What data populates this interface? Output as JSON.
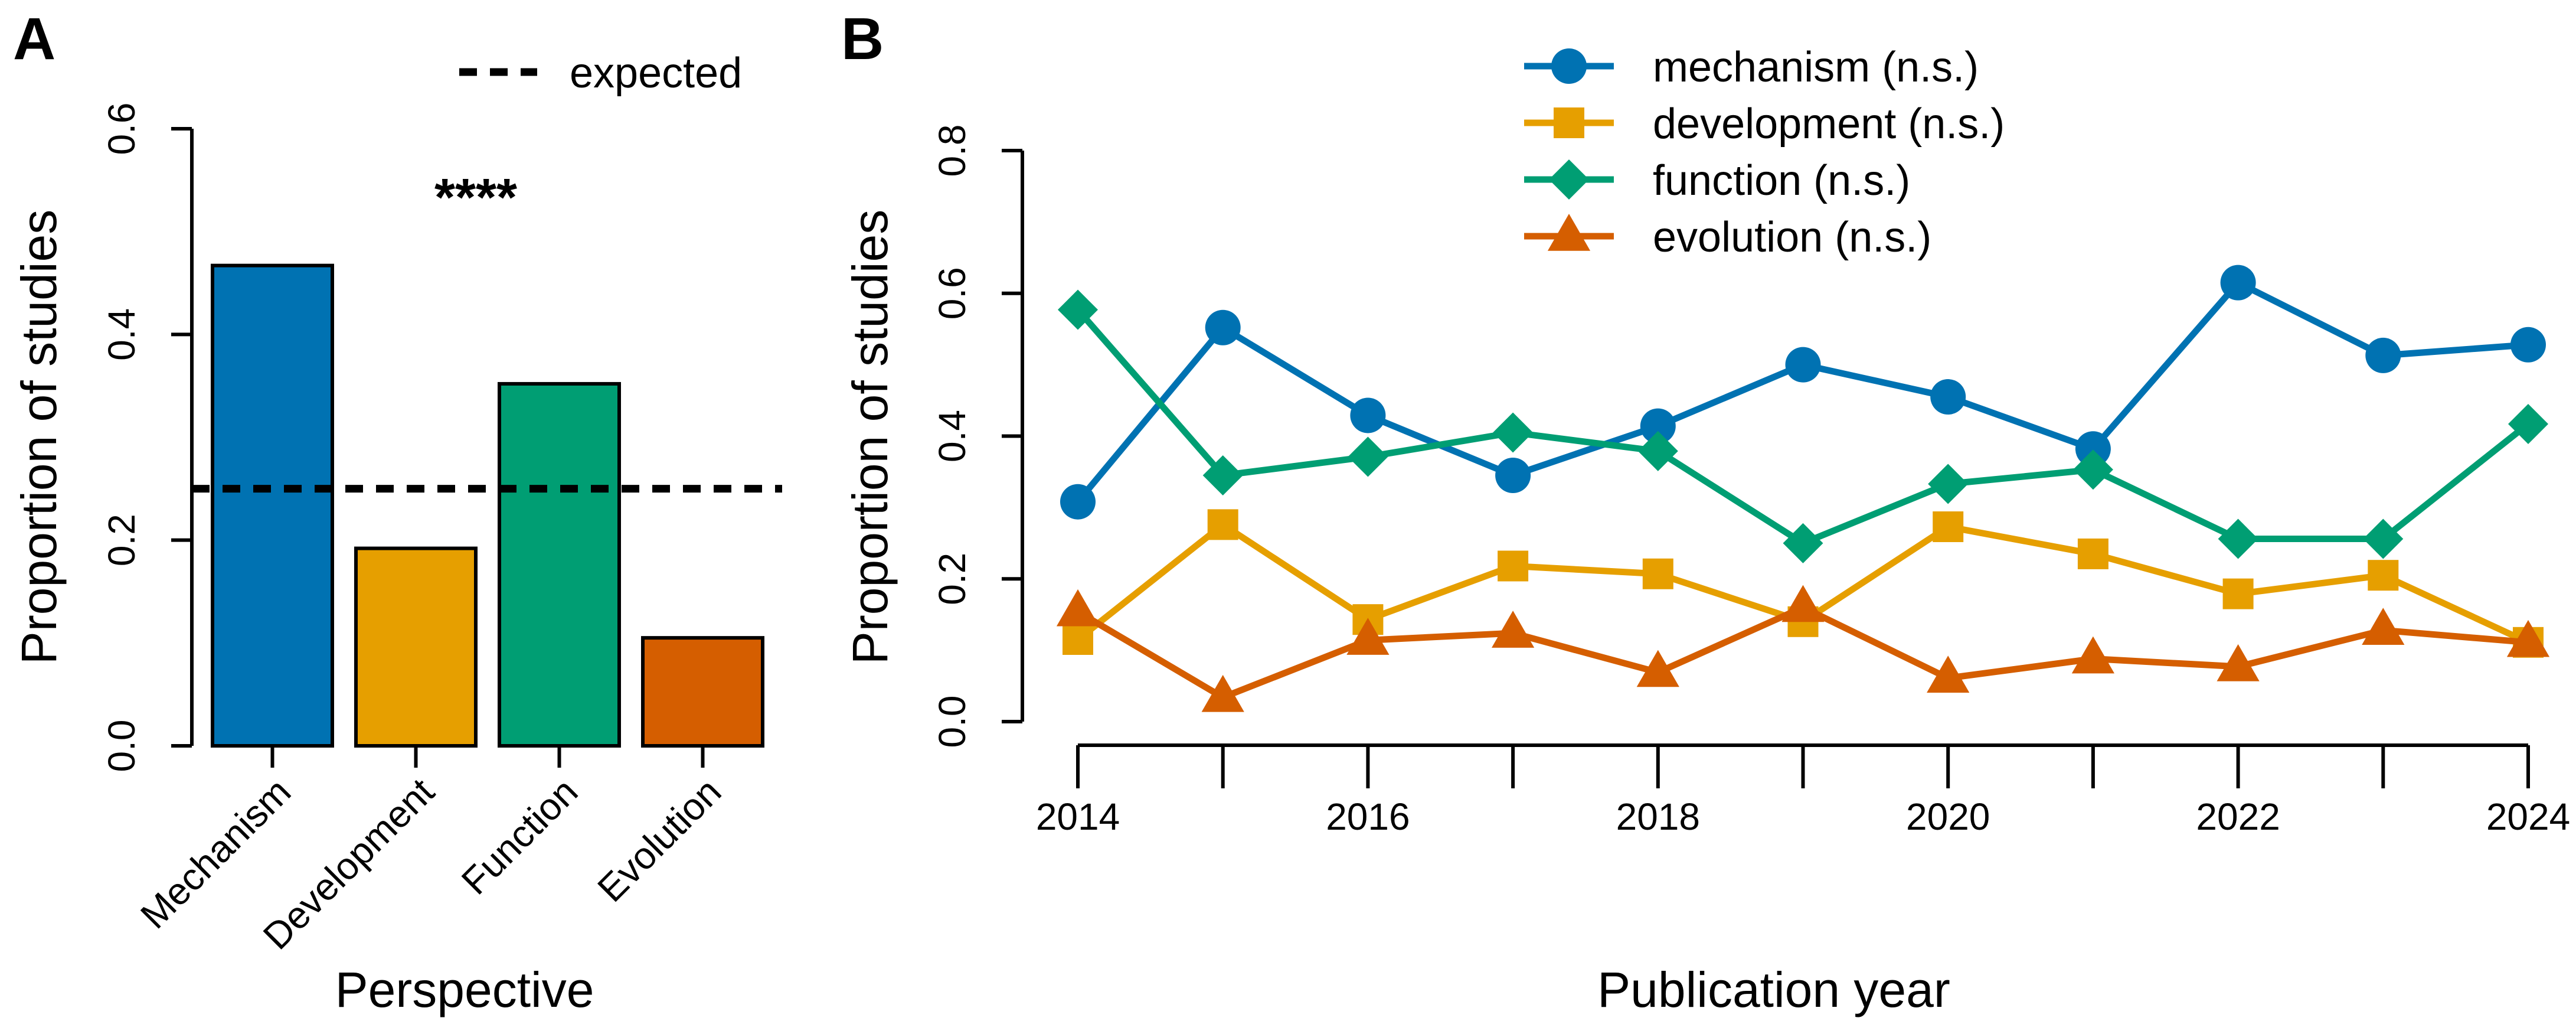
{
  "chart_data": [
    {
      "panel": "A",
      "type": "bar",
      "categories": [
        "Mechanism",
        "Development",
        "Function",
        "Evolution"
      ],
      "values": [
        0.467,
        0.192,
        0.352,
        0.105
      ],
      "colors": [
        "#0072B2",
        "#E69F00",
        "#009E73",
        "#D55E00"
      ],
      "xlabel": "Perspective",
      "ylabel": "Proportion of studies",
      "ylim": [
        0,
        0.6
      ],
      "yticks": [
        0.0,
        0.2,
        0.4,
        0.6
      ],
      "ytick_labels": [
        "0.0",
        "0.2",
        "0.4",
        "0.6"
      ],
      "reference_line": {
        "value": 0.25,
        "label": "expected",
        "style": "dotted"
      },
      "annotation": "****",
      "legend_position": "top-right"
    },
    {
      "panel": "B",
      "type": "line",
      "x": [
        2014,
        2015,
        2016,
        2017,
        2018,
        2019,
        2020,
        2021,
        2022,
        2023,
        2024
      ],
      "xticks": [
        2014,
        2016,
        2018,
        2020,
        2022,
        2024
      ],
      "xtick_labels": [
        "2014",
        "2016",
        "2018",
        "2020",
        "2022",
        "2024"
      ],
      "xlabel": "Publication year",
      "ylabel": "Proportion of studies",
      "ylim": [
        0,
        0.8
      ],
      "yticks": [
        0.0,
        0.2,
        0.4,
        0.6,
        0.8
      ],
      "ytick_labels": [
        "0.0",
        "0.2",
        "0.4",
        "0.6",
        "0.8"
      ],
      "legend_position": "top-center",
      "series": [
        {
          "name": "mechanism (n.s.)",
          "color": "#0072B2",
          "marker": "circle",
          "values": [
            0.308,
            0.552,
            0.429,
            0.345,
            0.414,
            0.5,
            0.455,
            0.382,
            0.615,
            0.513,
            0.528
          ]
        },
        {
          "name": "development (n.s.)",
          "color": "#E69F00",
          "marker": "square",
          "values": [
            0.115,
            0.276,
            0.143,
            0.218,
            0.207,
            0.14,
            0.273,
            0.235,
            0.179,
            0.205,
            0.111
          ]
        },
        {
          "name": "function (n.s.)",
          "color": "#009E73",
          "marker": "diamond",
          "values": [
            0.577,
            0.345,
            0.371,
            0.405,
            0.379,
            0.25,
            0.333,
            0.353,
            0.256,
            0.256,
            0.417
          ]
        },
        {
          "name": "evolution (n.s.)",
          "color": "#D55E00",
          "marker": "triangle",
          "values": [
            0.154,
            0.034,
            0.114,
            0.124,
            0.069,
            0.16,
            0.061,
            0.088,
            0.077,
            0.128,
            0.111
          ]
        }
      ]
    }
  ]
}
